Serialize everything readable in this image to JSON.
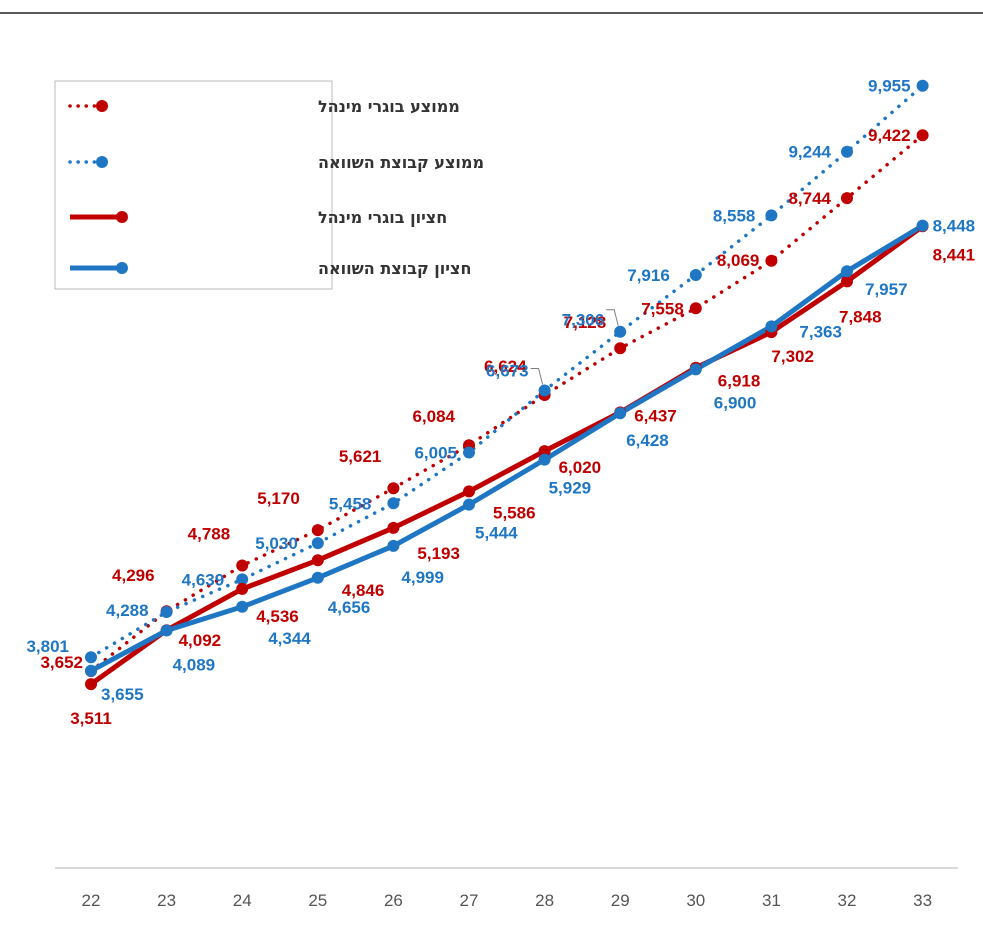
{
  "chart_data": {
    "type": "line",
    "x": [
      22,
      23,
      24,
      25,
      26,
      27,
      28,
      29,
      30,
      31,
      32,
      33
    ],
    "xticks": [
      "22",
      "23",
      "24",
      "25",
      "26",
      "27",
      "28",
      "29",
      "30",
      "31",
      "32",
      "33"
    ],
    "ylim": [
      2500,
      10500
    ],
    "grid": false,
    "legend_position": "top-left",
    "series": [
      {
        "name": "ממוצע בוגרי מינהל",
        "style": "dotted",
        "color": "#c00000",
        "values": [
          3652,
          4296,
          4788,
          5170,
          5621,
          6084,
          6624,
          7128,
          7558,
          8069,
          8744,
          9422
        ],
        "labels": [
          "3,652",
          "4,296",
          "4,788",
          "5,170",
          "5,621",
          "6,084",
          "6,624",
          "7,128",
          "7,558",
          "8,069",
          "8,744",
          "9,422"
        ]
      },
      {
        "name": "ממוצע קבוצת השוואה",
        "style": "dotted",
        "color": "#1f77c4",
        "values": [
          3801,
          4288,
          4639,
          5030,
          5458,
          6005,
          6673,
          7306,
          7916,
          8558,
          9244,
          9955
        ],
        "labels": [
          "3,801",
          "4,288",
          "4,639",
          "5,030",
          "5,458",
          "6,005",
          "6,673",
          "7,306",
          "7,916",
          "8,558",
          "9,244",
          "9,955"
        ]
      },
      {
        "name": "חציון בוגרי מינהל",
        "style": "solid",
        "color": "#c00000",
        "values": [
          3511,
          4092,
          4536,
          4846,
          5193,
          5586,
          6020,
          6437,
          6918,
          7302,
          7848,
          8441
        ],
        "labels": [
          "3,511",
          "4,092",
          "4,536",
          "4,846",
          "5,193",
          "5,586",
          "6,020",
          "6,437",
          "6,918",
          "7,302",
          "7,848",
          "8,441"
        ]
      },
      {
        "name": "חציון קבוצת השוואה",
        "style": "solid",
        "color": "#1f77c4",
        "values": [
          3655,
          4089,
          4344,
          4656,
          4999,
          5444,
          5929,
          6428,
          6900,
          7363,
          7957,
          8448
        ],
        "labels": [
          "3,655",
          "4,089",
          "4,344",
          "4,656",
          "4,999",
          "5,444",
          "5,929",
          "6,428",
          "6,900",
          "7,363",
          "7,957",
          "8,448"
        ]
      }
    ]
  }
}
